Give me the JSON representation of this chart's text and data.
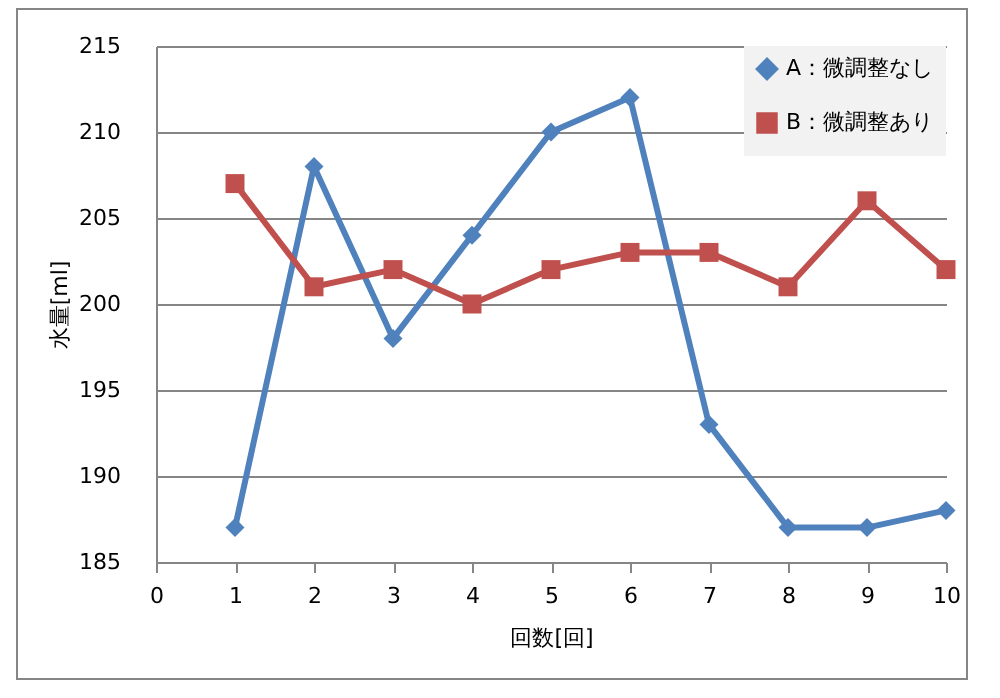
{
  "chart_data": {
    "type": "line",
    "xlabel": "回数[回]",
    "ylabel": "水量[ml]",
    "x": [
      1,
      2,
      3,
      4,
      5,
      6,
      7,
      8,
      9,
      10
    ],
    "series": [
      {
        "name": "A：微調整なし",
        "color": "#4f81bd",
        "marker": "diamond",
        "values": [
          187,
          208,
          198,
          204,
          210,
          212,
          193,
          187,
          187,
          188
        ]
      },
      {
        "name": "B：微調整あり",
        "color": "#c0504d",
        "marker": "square",
        "values": [
          207,
          201,
          202,
          200,
          202,
          203,
          203,
          201,
          206,
          202
        ]
      }
    ],
    "xlim": [
      0,
      10
    ],
    "xticks": [
      0,
      1,
      2,
      3,
      4,
      5,
      6,
      7,
      8,
      9,
      10
    ],
    "ylim": [
      185,
      215
    ],
    "yticks": [
      185,
      190,
      195,
      200,
      205,
      210,
      215
    ],
    "grid": "y",
    "legend": "top right",
    "line_style": "solid"
  }
}
